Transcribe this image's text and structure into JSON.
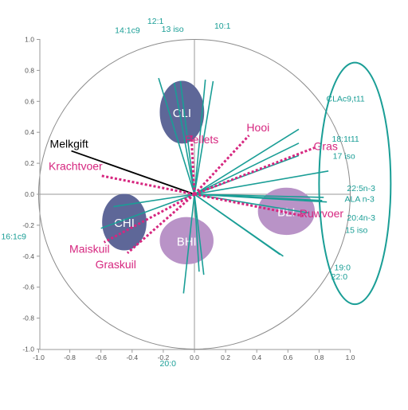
{
  "chart_data": {
    "type": "scatter",
    "subtype": "pca-correlation-biplot",
    "title": "",
    "xlabel": "",
    "ylabel": "",
    "xlim": [
      -1.0,
      1.0
    ],
    "ylim": [
      -1.0,
      1.0
    ],
    "grid": false,
    "correlation_circle_radius": 1.0,
    "x_ticks": [
      "-1.0",
      "-0.8",
      "-0.6",
      "-0.4",
      "-0.2",
      "0.0",
      "0.2",
      "0.4",
      "0.6",
      "0.8",
      "1.0"
    ],
    "y_ticks": [
      "1.0",
      "0.8",
      "0.6",
      "0.4",
      "0.2",
      "0.0",
      "-0.2",
      "-0.4",
      "-0.6",
      "-0.8",
      "-1.0"
    ],
    "colors": {
      "variables": "#1a9e96",
      "feed": "#d6267f",
      "milk": "#000000",
      "cluster_dark": "#5e6798",
      "cluster_light": "#b993c7",
      "axis": "#9a9a9a",
      "circle": "#8a8a8a",
      "highlight": "#1a9e96"
    },
    "clusters": [
      {
        "label": "CLI",
        "cx": -0.08,
        "cy": 0.53,
        "rx": 0.14,
        "ry": 0.2,
        "tone": "dark"
      },
      {
        "label": "CHI",
        "cx": -0.45,
        "cy": -0.18,
        "rx": 0.14,
        "ry": 0.18,
        "tone": "dark"
      },
      {
        "label": "BHI",
        "cx": -0.05,
        "cy": -0.3,
        "rx": 0.17,
        "ry": 0.15,
        "tone": "light"
      },
      {
        "label": "BLI",
        "cx": 0.59,
        "cy": -0.11,
        "rx": 0.18,
        "ry": 0.15,
        "tone": "light"
      }
    ],
    "fatty_acid_vectors": [
      {
        "x": -0.23,
        "y": 0.75
      },
      {
        "x": -0.13,
        "y": 0.72
      },
      {
        "x": -0.09,
        "y": 0.73
      },
      {
        "x": 0.07,
        "y": 0.74
      },
      {
        "x": 0.12,
        "y": 0.73
      },
      {
        "x": 0.67,
        "y": 0.42
      },
      {
        "x": 0.67,
        "y": 0.33
      },
      {
        "x": 0.67,
        "y": 0.25
      },
      {
        "x": 0.86,
        "y": 0.15
      },
      {
        "x": 0.83,
        "y": -0.02
      },
      {
        "x": 0.82,
        "y": -0.04
      },
      {
        "x": 0.85,
        "y": -0.05
      },
      {
        "x": 0.73,
        "y": -0.12
      },
      {
        "x": 0.55,
        "y": -0.39
      },
      {
        "x": 0.57,
        "y": -0.4
      },
      {
        "x": -0.6,
        "y": -0.22
      },
      {
        "x": -0.07,
        "y": -0.64
      },
      {
        "x": 0.03,
        "y": -0.5
      },
      {
        "x": 0.06,
        "y": -0.52
      },
      {
        "x": -0.52,
        "y": -0.08
      }
    ],
    "feed_vectors": [
      {
        "label": "Pellets",
        "x": -0.02,
        "y": 0.38
      },
      {
        "label": "Hooi",
        "x": 0.35,
        "y": 0.38
      },
      {
        "label": "Gras",
        "x": 0.77,
        "y": 0.3
      },
      {
        "label": "Krachtvoer",
        "x": -0.6,
        "y": 0.12
      },
      {
        "label": "Ruwvoer",
        "x": 0.7,
        "y": -0.14
      },
      {
        "label": "Maiskuil",
        "x": -0.58,
        "y": -0.31
      },
      {
        "label": "Graskuil",
        "x": -0.43,
        "y": -0.38
      }
    ],
    "milk_vector": {
      "label": "Melkgift",
      "x": -0.79,
      "y": 0.28
    },
    "variable_labels": [
      {
        "text": "12:1",
        "x": -0.25,
        "y": 1.1
      },
      {
        "text": "14:1c9",
        "x": -0.43,
        "y": 1.04
      },
      {
        "text": "13 iso",
        "x": -0.14,
        "y": 1.05
      },
      {
        "text": "10:1",
        "x": 0.18,
        "y": 1.07
      },
      {
        "text": "CLAc9,t11",
        "x": 0.97,
        "y": 0.6
      },
      {
        "text": "18:1t11",
        "x": 0.97,
        "y": 0.34
      },
      {
        "text": "17 iso",
        "x": 0.96,
        "y": 0.23
      },
      {
        "text": "22:5n-3",
        "x": 1.07,
        "y": 0.02
      },
      {
        "text": "ALA n-3",
        "x": 1.06,
        "y": -0.05
      },
      {
        "text": "20:4n-3",
        "x": 1.07,
        "y": -0.17
      },
      {
        "text": "15 iso",
        "x": 1.04,
        "y": -0.25
      },
      {
        "text": "16:1c9",
        "x": -1.16,
        "y": -0.29
      },
      {
        "text": "19:0",
        "x": 0.95,
        "y": -0.49
      },
      {
        "text": "22:0",
        "x": 0.93,
        "y": -0.55
      },
      {
        "text": "20:0",
        "x": -0.17,
        "y": -1.11
      }
    ],
    "highlight_ellipse": {
      "cx": 1.03,
      "cy": 0.07,
      "rx": 0.23,
      "ry": 0.78
    }
  }
}
